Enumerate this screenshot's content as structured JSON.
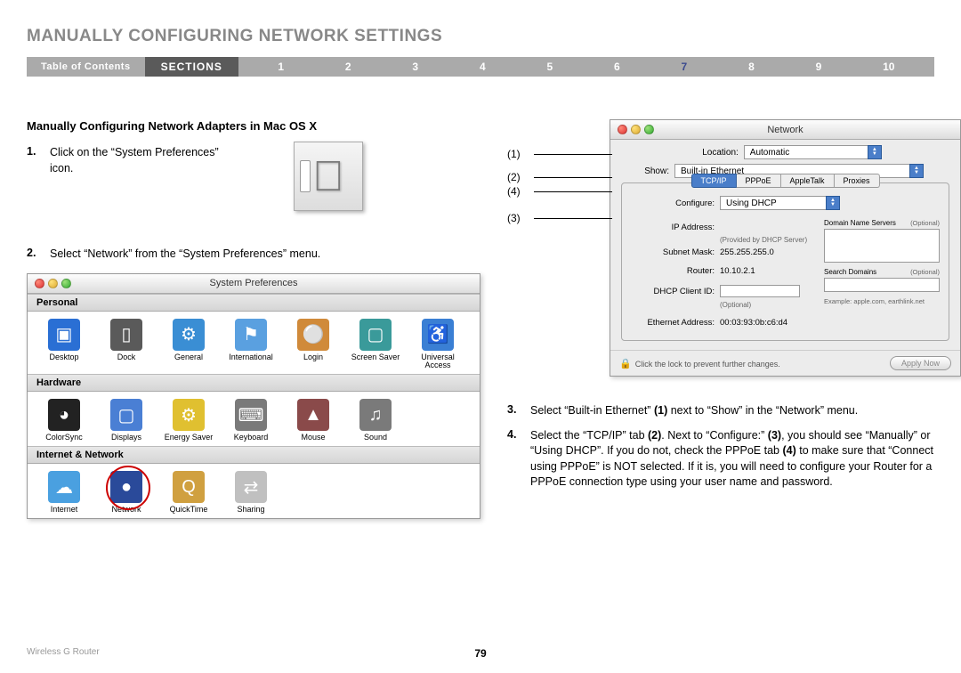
{
  "header": {
    "main_title": "MANUALLY CONFIGURING NETWORK SETTINGS",
    "toc_label": "Table of Contents",
    "sections_label": "SECTIONS",
    "nums": [
      "1",
      "2",
      "3",
      "4",
      "5",
      "6",
      "7",
      "8",
      "9",
      "10"
    ],
    "active_section": "7"
  },
  "left": {
    "subtitle": "Manually Configuring Network Adapters in Mac OS X",
    "step1_num": "1.",
    "step1_text": "Click on the “System Preferences” icon.",
    "step2_num": "2.",
    "step2_text": "Select “Network” from the “System Preferences” menu.",
    "sp_title": "System Preferences",
    "sections": [
      {
        "hdr": "Personal",
        "items": [
          {
            "label": "Desktop",
            "color": "#2a6fd4",
            "glyph": "▣"
          },
          {
            "label": "Dock",
            "color": "#5a5a5a",
            "glyph": "▯"
          },
          {
            "label": "General",
            "color": "#3a8ed4",
            "glyph": "⚙"
          },
          {
            "label": "International",
            "color": "#5aa0e0",
            "glyph": "⚑"
          },
          {
            "label": "Login",
            "color": "#d08a3a",
            "glyph": "⚪"
          },
          {
            "label": "Screen Saver",
            "color": "#3a9a9a",
            "glyph": "▢"
          },
          {
            "label": "Universal Access",
            "color": "#3a7fd4",
            "glyph": "♿"
          }
        ]
      },
      {
        "hdr": "Hardware",
        "items": [
          {
            "label": "ColorSync",
            "color": "#222",
            "glyph": "◕"
          },
          {
            "label": "Displays",
            "color": "#4a7fd4",
            "glyph": "▢"
          },
          {
            "label": "Energy Saver",
            "color": "#e0c030",
            "glyph": "⚙"
          },
          {
            "label": "Keyboard",
            "color": "#7a7a7a",
            "glyph": "⌨"
          },
          {
            "label": "Mouse",
            "color": "#8a4a4a",
            "glyph": "▲"
          },
          {
            "label": "Sound",
            "color": "#7a7a7a",
            "glyph": "♫"
          }
        ]
      },
      {
        "hdr": "Internet & Network",
        "items": [
          {
            "label": "Internet",
            "color": "#4aa0e0",
            "glyph": "☁"
          },
          {
            "label": "Network",
            "color": "#2a4a9a",
            "glyph": "●",
            "circled": true
          },
          {
            "label": "QuickTime",
            "color": "#d0a040",
            "glyph": "Q"
          },
          {
            "label": "Sharing",
            "color": "#c0c0c0",
            "glyph": "⇄"
          }
        ]
      }
    ]
  },
  "right": {
    "callouts": [
      "(1)",
      "(2)",
      "(4)",
      "(3)"
    ],
    "net_title": "Network",
    "loc_label": "Location:",
    "loc_val": "Automatic",
    "show_label": "Show:",
    "show_val": "Built-in Ethernet",
    "tabs": [
      "TCP/IP",
      "PPPoE",
      "AppleTalk",
      "Proxies"
    ],
    "cfg_label": "Configure:",
    "cfg_val": "Using DHCP",
    "ip_label": "IP Address:",
    "ip_sub": "(Provided by DHCP Server)",
    "sm_label": "Subnet Mask:",
    "sm_val": "255.255.255.0",
    "rt_label": "Router:",
    "rt_val": "10.10.2.1",
    "dc_label": "DHCP Client ID:",
    "dc_sub": "(Optional)",
    "ea_label": "Ethernet Address:",
    "ea_val": "00:03:93:0b:c6:d4",
    "dns_label": "Domain Name Servers",
    "dns_opt": "(Optional)",
    "sd_label": "Search Domains",
    "sd_opt": "(Optional)",
    "ex_label": "Example: apple.com, earthlink.net",
    "lock_text": "Click the lock to prevent further changes.",
    "apply_label": "Apply Now",
    "step3_num": "3.",
    "step3_text": "Select “Built-in Ethernet” (1) next to “Show” in the “Network” menu.",
    "step4_num": "4.",
    "step4_text": "Select the “TCP/IP” tab (2). Next to “Configure:” (3), you should see “Manually” or “Using DHCP”. If you do not, check the PPPoE tab (4) to make sure that “Connect using PPPoE” is NOT selected. If it is, you will need to configure your Router for a PPPoE connection type using your user name and password."
  },
  "footer": {
    "product": "Wireless G Router",
    "page": "79"
  }
}
